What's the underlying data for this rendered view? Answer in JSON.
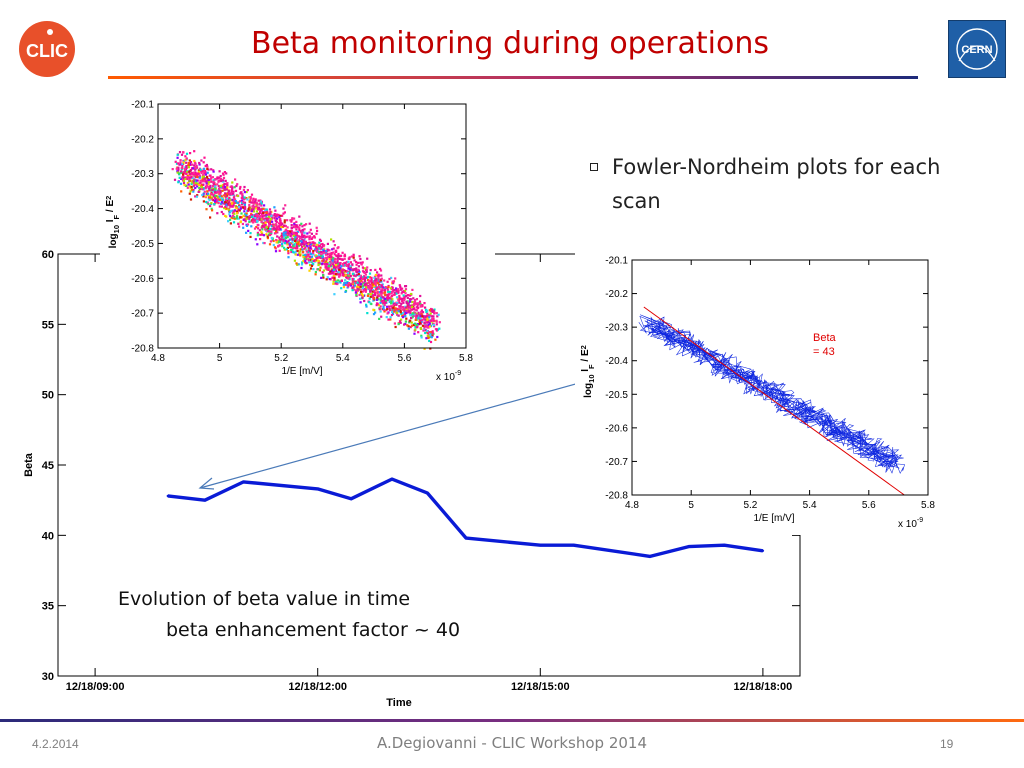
{
  "slide": {
    "title": "Beta monitoring during operations",
    "bullet": "Fowler-Nordheim plots for each scan",
    "caption_line1": "Evolution of beta value in time",
    "caption_line2": "beta enhancement factor ~ 40"
  },
  "logos": {
    "left": {
      "text": "CLIC",
      "color": "#e8502a"
    },
    "right": {
      "text": "CERN",
      "color": "#1f5fa7"
    }
  },
  "footer": {
    "date": "4.2.2014",
    "center": "A.Degiovanni - CLIC Workshop 2014",
    "page": "19"
  },
  "chart_data": [
    {
      "type": "line",
      "title": "",
      "xlabel": "Time",
      "ylabel": "Beta",
      "x_ticks": [
        "12/18/09:00",
        "12/18/12:00",
        "12/18/15:00",
        "12/18/18:00"
      ],
      "xlim_hours": [
        8.5,
        18.5
      ],
      "yticks": [
        30,
        35,
        40,
        45,
        50,
        55,
        60
      ],
      "ylim": [
        30,
        60
      ],
      "color": "#0a1bd6",
      "series": [
        {
          "x_hours": [
            9.98,
            10.48,
            11.0,
            12.0,
            12.45,
            13.0,
            13.48,
            14.0,
            15.0,
            15.45,
            16.48,
            17.0,
            17.48,
            18.0
          ],
          "values": [
            42.8,
            42.5,
            43.8,
            43.3,
            42.6,
            44.0,
            43.0,
            39.8,
            39.3,
            39.3,
            38.5,
            39.2,
            39.3,
            38.9
          ]
        }
      ]
    },
    {
      "type": "scatter",
      "title": "",
      "xlabel": "1/E [m/V]",
      "ylabel": "log10 IF / E2",
      "ylabel_parts": {
        "base": "log",
        "sub1": "10",
        "mid": " I",
        "sub2": "F",
        "tail": " / E",
        "sup": "2"
      },
      "x_multiplier": "x 10-9",
      "xlim": [
        4.8,
        5.8
      ],
      "ylim": [
        -20.8,
        -20.1
      ],
      "xticks": [
        4.8,
        5.0,
        5.2,
        5.4,
        5.6,
        5.8
      ],
      "xtick_labels": [
        "4.8",
        "5",
        "5.2",
        "5.4",
        "5.6",
        "5.8"
      ],
      "yticks": [
        -20.1,
        -20.2,
        -20.3,
        -20.4,
        -20.5,
        -20.6,
        -20.7,
        -20.8
      ],
      "ytick_labels": [
        "-20.1",
        "-20.2",
        "-20.3",
        "-20.4",
        "-20.5",
        "-20.6",
        "-20.7",
        "-20.8"
      ],
      "trend": {
        "x": [
          4.86,
          5.7
        ],
        "y": [
          -20.27,
          -20.73
        ],
        "band_halfwidth": 0.08
      },
      "colors": [
        "#ff1090",
        "#ff2a9a",
        "#e0109a",
        "#00e0d0",
        "#40d0ff",
        "#30e060",
        "#ffd000",
        "#ff6000",
        "#d02000",
        "#8a00ff",
        "#20a0ff",
        "#b0e000"
      ]
    },
    {
      "type": "line",
      "title": "",
      "xlabel": "1/E [m/V]",
      "ylabel": "log10 IF / E2",
      "ylabel_parts": {
        "base": "log",
        "sub1": "10",
        "mid": " I",
        "sub2": "F",
        "tail": " / E",
        "sup": "2"
      },
      "x_multiplier": "x 10-9",
      "xlim": [
        4.8,
        5.8
      ],
      "ylim": [
        -20.8,
        -20.1
      ],
      "xticks": [
        4.8,
        5.0,
        5.2,
        5.4,
        5.6,
        5.8
      ],
      "xtick_labels": [
        "4.8",
        "5",
        "5.2",
        "5.4",
        "5.6",
        "5.8"
      ],
      "yticks": [
        -20.1,
        -20.2,
        -20.3,
        -20.4,
        -20.5,
        -20.6,
        -20.7,
        -20.8
      ],
      "ytick_labels": [
        "-20.1",
        "-20.2",
        "-20.3",
        "-20.4",
        "-20.5",
        "-20.6",
        "-20.7",
        "-20.8"
      ],
      "annotation": [
        "Beta",
        "= 43"
      ],
      "annotation_color": "#e00000",
      "data_color": "#1028e0",
      "fit": {
        "x": [
          4.84,
          5.72
        ],
        "y": [
          -20.24,
          -20.8
        ]
      },
      "trend": {
        "x": [
          4.86,
          5.7
        ],
        "y": [
          -20.29,
          -20.71
        ],
        "band_halfwidth": 0.03
      }
    }
  ]
}
